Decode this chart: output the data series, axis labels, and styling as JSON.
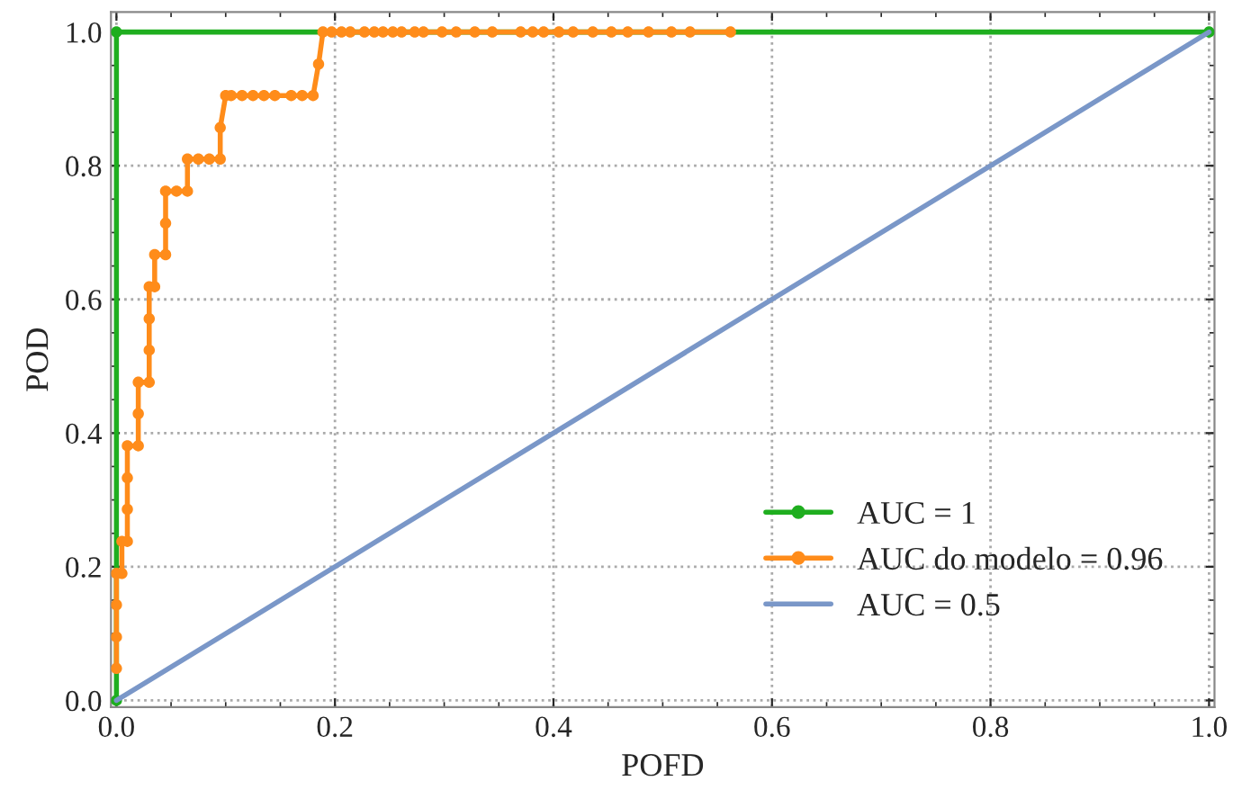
{
  "chart_data": {
    "type": "line",
    "xlabel": "POFD",
    "ylabel": "POD",
    "xlim": [
      -0.005,
      1.005
    ],
    "ylim": [
      -0.01,
      1.03
    ],
    "xticks": [
      {
        "value": 0,
        "label": "0.0"
      },
      0.2,
      0.4,
      0.6,
      0.8,
      {
        "value": 1,
        "label": "1.0"
      }
    ],
    "yticks": [
      {
        "value": 0,
        "label": "0.0"
      },
      0.2,
      0.4,
      0.6,
      0.8,
      {
        "value": 1,
        "label": "1.0"
      }
    ],
    "grid": true,
    "legend": "bottom right",
    "series": [
      {
        "name": "AUC = 1",
        "color": "#1fae1f",
        "marker": "circle",
        "x": [
          0,
          0,
          1
        ],
        "values": [
          0,
          1,
          1
        ]
      },
      {
        "name": "AUC do modelo = 0.96",
        "color": "#ff8c1a",
        "marker": "circle",
        "x": [
          0.0,
          0.0,
          0.0,
          0.0,
          0.005,
          0.005,
          0.01,
          0.01,
          0.01,
          0.01,
          0.02,
          0.02,
          0.02,
          0.03,
          0.03,
          0.03,
          0.03,
          0.035,
          0.035,
          0.045,
          0.045,
          0.045,
          0.055,
          0.065,
          0.065,
          0.075,
          0.085,
          0.095,
          0.095,
          0.1,
          0.105,
          0.115,
          0.125,
          0.135,
          0.145,
          0.16,
          0.17,
          0.18,
          0.185,
          0.189,
          0.197,
          0.206,
          0.214,
          0.227,
          0.236,
          0.244,
          0.253,
          0.261,
          0.273,
          0.281,
          0.298,
          0.311,
          0.328,
          0.344,
          0.37,
          0.381,
          0.391,
          0.405,
          0.418,
          0.436,
          0.453,
          0.468,
          0.487,
          0.508,
          0.525,
          0.562
        ],
        "values": [
          0.048,
          0.095,
          0.143,
          0.19,
          0.19,
          0.238,
          0.238,
          0.286,
          0.333,
          0.381,
          0.381,
          0.429,
          0.476,
          0.476,
          0.524,
          0.571,
          0.619,
          0.619,
          0.667,
          0.667,
          0.714,
          0.762,
          0.762,
          0.762,
          0.81,
          0.81,
          0.81,
          0.81,
          0.857,
          0.905,
          0.905,
          0.905,
          0.905,
          0.905,
          0.905,
          0.905,
          0.905,
          0.905,
          0.952,
          1.0,
          1.0,
          1.0,
          1.0,
          1.0,
          1.0,
          1.0,
          1.0,
          1.0,
          1.0,
          1.0,
          1.0,
          1.0,
          1.0,
          1.0,
          1.0,
          1.0,
          1.0,
          1.0,
          1.0,
          1.0,
          1.0,
          1.0,
          1.0,
          1.0,
          1.0,
          1.0
        ]
      },
      {
        "name": "AUC = 0.5",
        "color": "#7a97c8",
        "marker": "none",
        "x": [
          0,
          1
        ],
        "values": [
          0,
          1
        ]
      }
    ]
  }
}
